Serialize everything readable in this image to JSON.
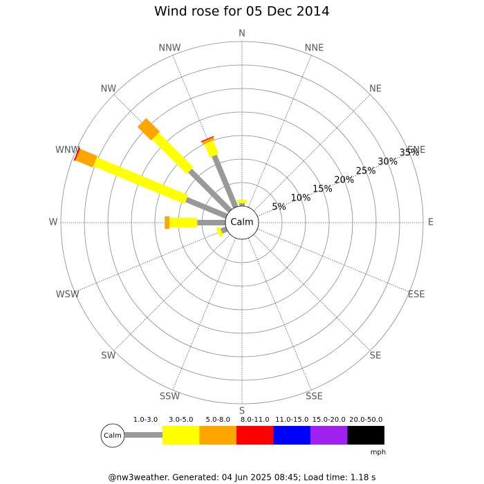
{
  "chart_data": {
    "type": "windrose",
    "title": "Wind rose for 05 Dec 2014",
    "calm_label": "Calm",
    "directions": [
      "N",
      "NNE",
      "NE",
      "ENE",
      "E",
      "ESE",
      "SE",
      "SSE",
      "S",
      "SSW",
      "SW",
      "WSW",
      "W",
      "WNW",
      "NW",
      "NNW"
    ],
    "rlim": [
      0,
      35
    ],
    "rticks": [
      {
        "value": 5,
        "label": "5%"
      },
      {
        "value": 10,
        "label": "10%"
      },
      {
        "value": 15,
        "label": "15%"
      },
      {
        "value": 20,
        "label": "20%"
      },
      {
        "value": 25,
        "label": "25%"
      },
      {
        "value": 30,
        "label": "30%"
      },
      {
        "value": 35,
        "label": "35%"
      }
    ],
    "series": [
      {
        "name": "1.0-3.0",
        "color": "#999999",
        "values": [
          0.6,
          0,
          0,
          0,
          0,
          0,
          0,
          0,
          0,
          0,
          0,
          1.2,
          6.0,
          9.3,
          12.1,
          11.9
        ]
      },
      {
        "name": "3.0-5.0",
        "color": "#ffff00",
        "values": [
          0.7,
          0,
          0,
          0,
          0,
          0,
          0,
          0,
          0,
          0,
          0,
          0.8,
          5.9,
          21.0,
          10.4,
          3.1
        ]
      },
      {
        "name": "5.0-8.0",
        "color": "#ffa500",
        "values": [
          0,
          0,
          0,
          0,
          0,
          0,
          0,
          0,
          0,
          0,
          0,
          0,
          1.0,
          4.0,
          4.1,
          0.6
        ]
      },
      {
        "name": "8.0-11.0",
        "color": "#ff0000",
        "values": [
          0,
          0,
          0,
          0,
          0,
          0,
          0,
          0,
          0,
          0,
          0,
          0,
          0,
          0.3,
          0,
          0.2
        ]
      },
      {
        "name": "11.0-15.0",
        "color": "#0000ff",
        "values": [
          0,
          0,
          0,
          0,
          0,
          0,
          0,
          0,
          0,
          0,
          0,
          0,
          0,
          0,
          0,
          0
        ]
      },
      {
        "name": "15.0-20.0",
        "color": "#a020f0",
        "values": [
          0,
          0,
          0,
          0,
          0,
          0,
          0,
          0,
          0,
          0,
          0,
          0,
          0,
          0,
          0,
          0
        ]
      },
      {
        "name": "20.0-50.0",
        "color": "#000000",
        "values": [
          0,
          0,
          0,
          0,
          0,
          0,
          0,
          0,
          0,
          0,
          0,
          0,
          0,
          0,
          0,
          0
        ]
      }
    ],
    "legend_unit": "mph",
    "footer": "@nw3weather. Generated: 04 Jun 2025 08:45; Load time: 1.18 s"
  }
}
